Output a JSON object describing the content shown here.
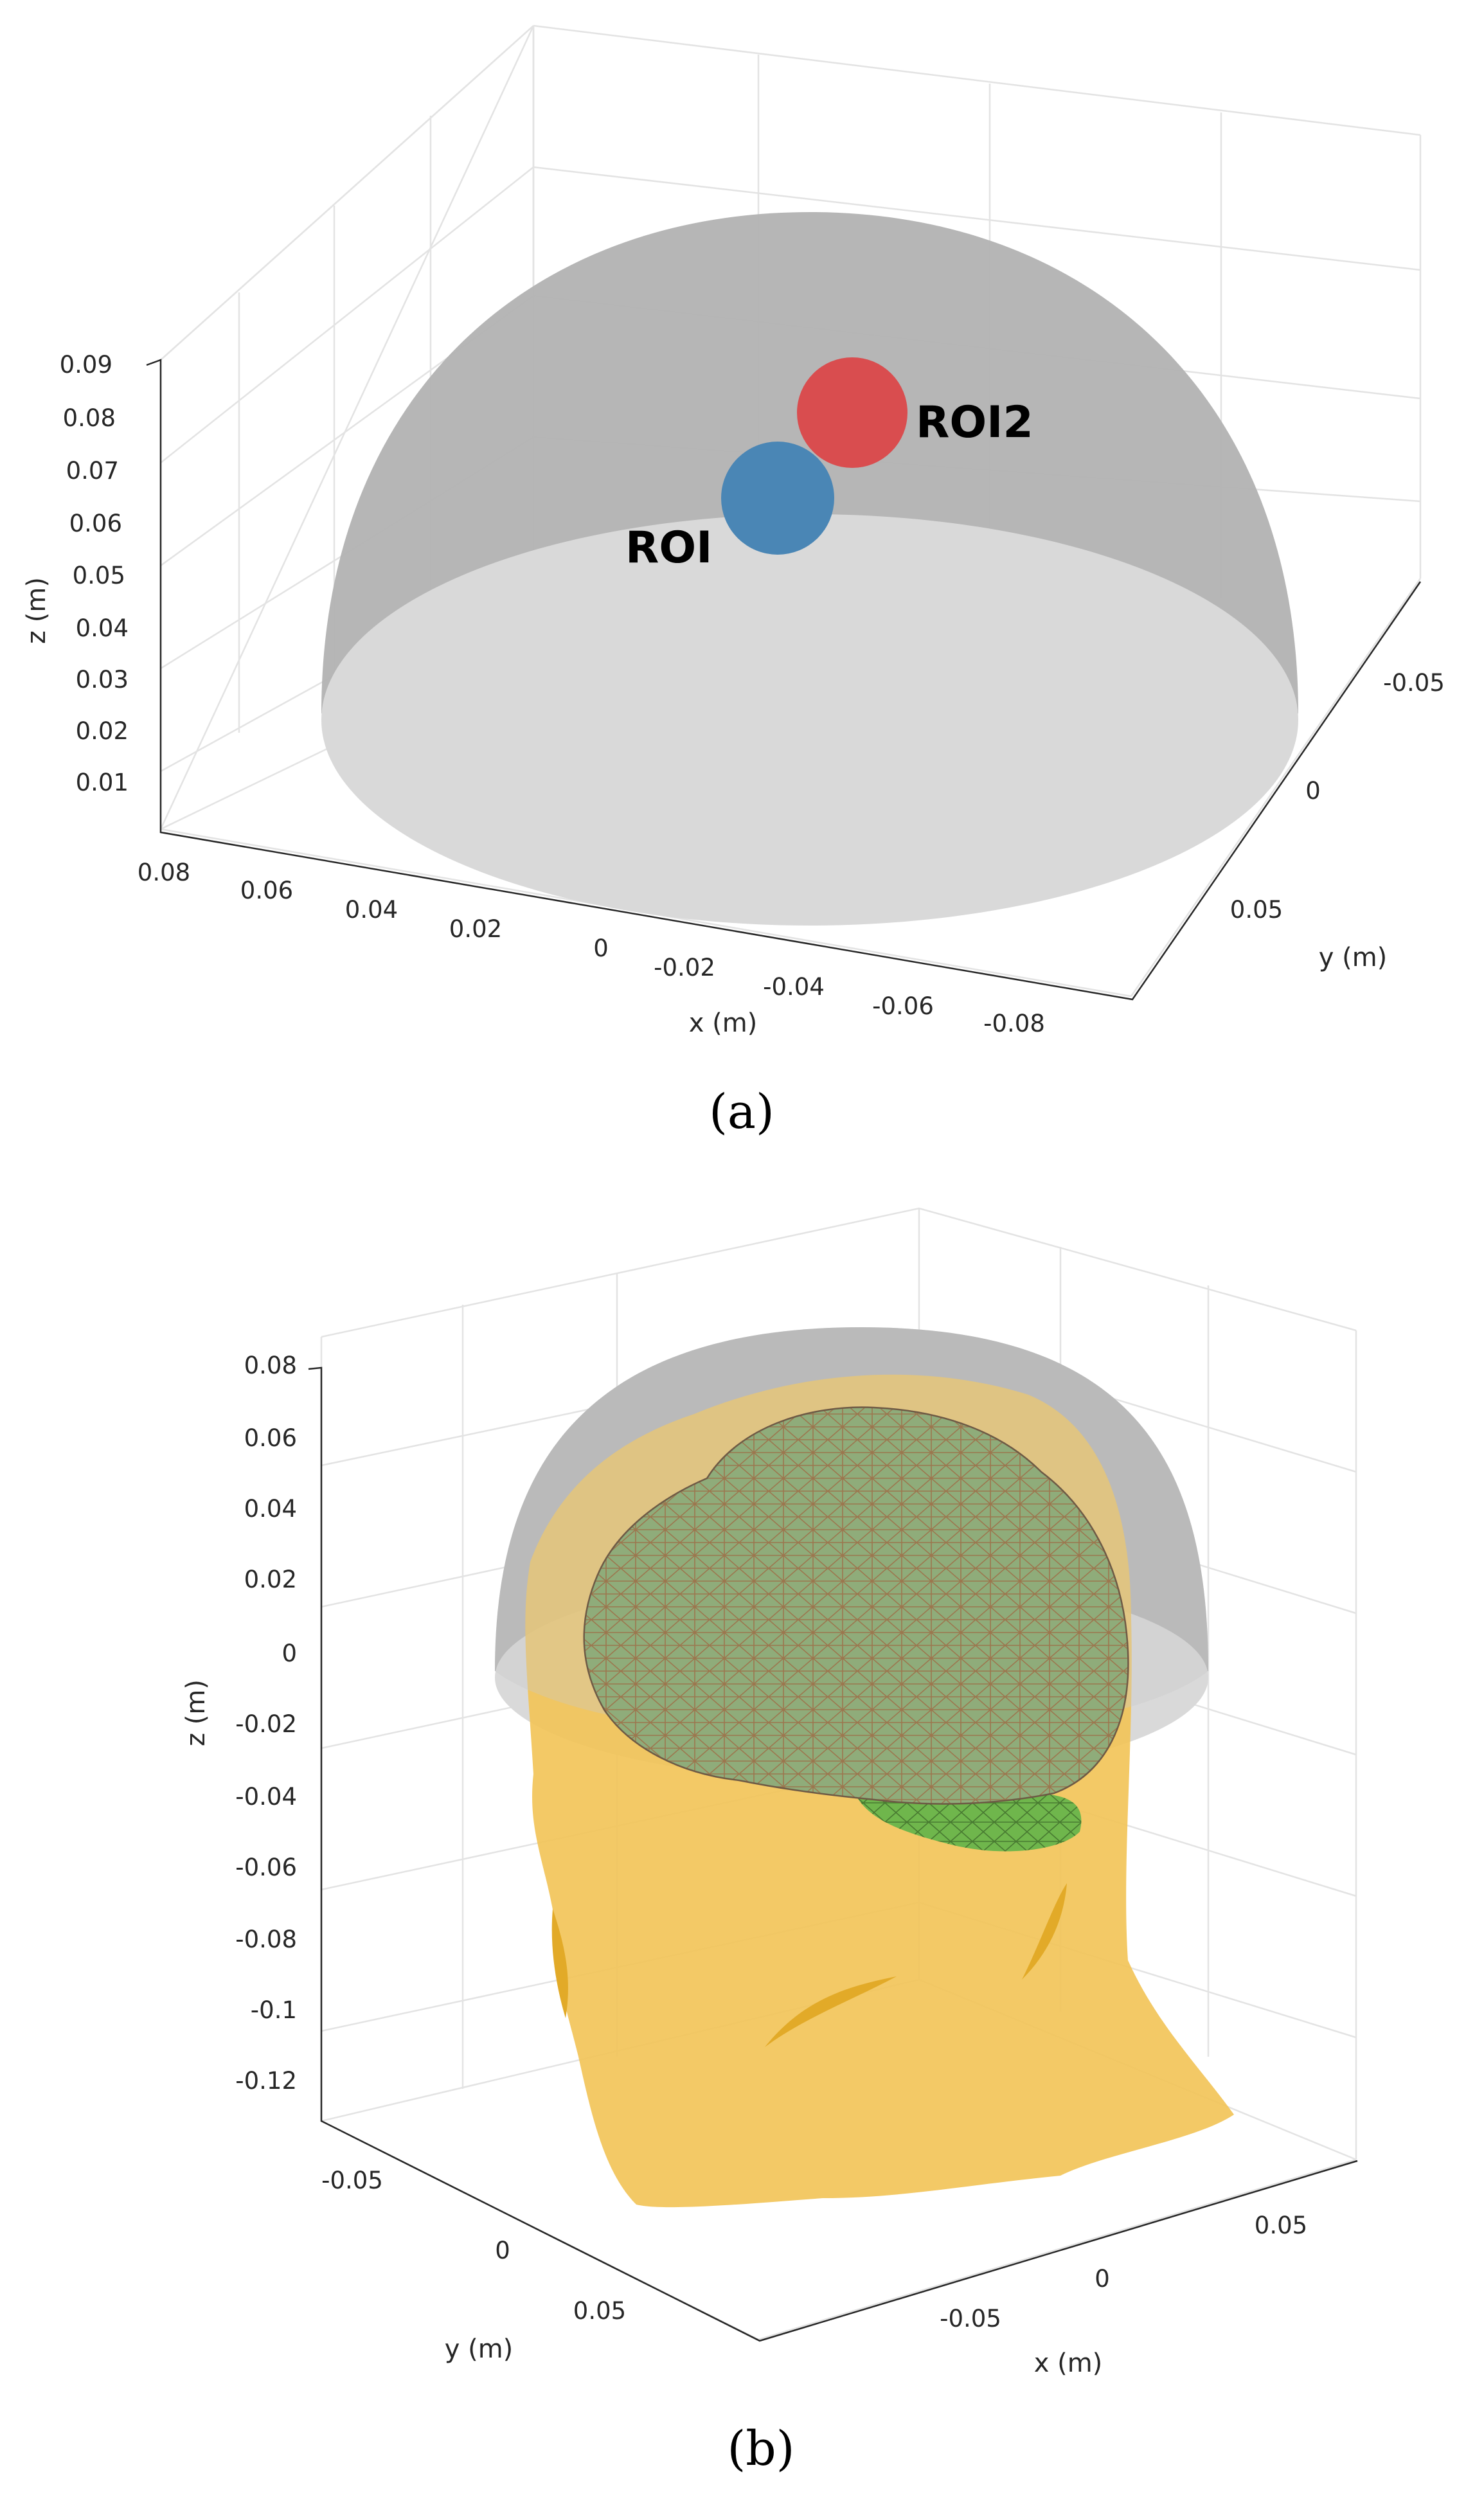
{
  "colors": {
    "hemisphere_shell": "#b2b2b2",
    "hemisphere_base": "#d9d9d9",
    "roi1": "#4a86b5",
    "roi2": "#d94d4f",
    "scalp": "#f2c355",
    "brain": "#8fac7a",
    "brain_mesh": "#a0643e",
    "brain_underside": "#6fb64c",
    "grid": "#e3e3e3",
    "axis": "#262626"
  },
  "chart_data": [
    {
      "type": "3d-surface",
      "caption": "(a)",
      "xlabel": "x (m)",
      "ylabel": "y (m)",
      "zlabel": "z (m)",
      "x_ticks": [
        "0.08",
        "0.06",
        "0.04",
        "0.02",
        "0",
        "-0.02",
        "-0.04",
        "-0.06",
        "-0.08"
      ],
      "y_ticks": [
        "-0.05",
        "0",
        "0.05"
      ],
      "z_ticks": [
        "0.09",
        "0.08",
        "0.07",
        "0.06",
        "0.05",
        "0.04",
        "0.03",
        "0.02",
        "0.01"
      ],
      "objects": [
        "hemisphere",
        "ROI",
        "ROI2"
      ],
      "annotations": [
        "ROI",
        "ROI2"
      ]
    },
    {
      "type": "3d-surface",
      "caption": "(b)",
      "xlabel": "x (m)",
      "ylabel": "y (m)",
      "zlabel": "z (m)",
      "x_ticks": [
        "-0.05",
        "0",
        "0.05"
      ],
      "y_ticks": [
        "-0.05",
        "0",
        "0.05"
      ],
      "z_ticks": [
        "0.08",
        "0.06",
        "0.04",
        "0.02",
        "0",
        "-0.02",
        "-0.04",
        "-0.06",
        "-0.08",
        "-0.1",
        "-0.12"
      ],
      "objects": [
        "hemisphere",
        "scalp",
        "brain"
      ]
    }
  ]
}
